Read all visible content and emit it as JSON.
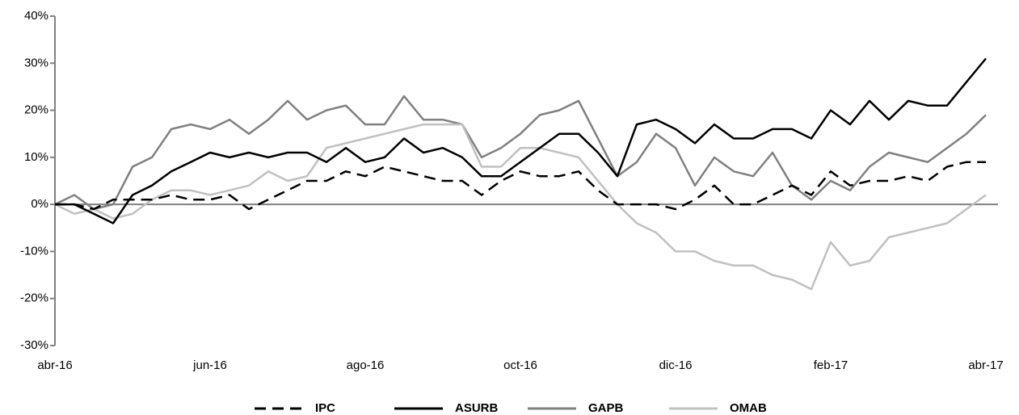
{
  "chart_data": {
    "type": "line",
    "categories": [
      "abr-16",
      null,
      null,
      null,
      null,
      null,
      null,
      null,
      "jun-16",
      null,
      null,
      null,
      null,
      null,
      null,
      null,
      "ago-16",
      null,
      null,
      null,
      null,
      null,
      null,
      null,
      "oct-16",
      null,
      null,
      null,
      null,
      null,
      null,
      null,
      "dic-16",
      null,
      null,
      null,
      null,
      null,
      null,
      null,
      "feb-17",
      null,
      null,
      null,
      null,
      null,
      null,
      null,
      "abr-17"
    ],
    "series": [
      {
        "name": "IPC",
        "color": "#000000",
        "dashed": true,
        "values": [
          0,
          0,
          -1,
          1,
          1,
          1,
          2,
          1,
          1,
          2,
          -1,
          1,
          3,
          5,
          5,
          7,
          6,
          8,
          7,
          6,
          5,
          5,
          2,
          5,
          7,
          6,
          6,
          7,
          3,
          0,
          0,
          0,
          -1,
          1,
          4,
          0,
          0,
          2,
          4,
          2,
          7,
          4,
          5,
          5,
          6,
          5,
          8,
          9,
          9
        ]
      },
      {
        "name": "ASURB",
        "color": "#000000",
        "values": [
          0,
          0,
          -2,
          -4,
          2,
          4,
          7,
          9,
          11,
          10,
          11,
          10,
          11,
          11,
          9,
          12,
          9,
          10,
          14,
          11,
          12,
          10,
          6,
          6,
          9,
          12,
          15,
          15,
          11,
          6,
          17,
          18,
          16,
          13,
          17,
          14,
          14,
          16,
          16,
          14,
          20,
          17,
          22,
          18,
          22,
          21,
          21,
          26,
          31
        ]
      },
      {
        "name": "GAPB",
        "color": "#808080",
        "values": [
          0,
          2,
          -1,
          0,
          8,
          10,
          16,
          17,
          16,
          18,
          15,
          18,
          22,
          18,
          20,
          21,
          17,
          17,
          23,
          18,
          18,
          17,
          10,
          12,
          15,
          19,
          20,
          22,
          14,
          6,
          9,
          15,
          12,
          4,
          10,
          7,
          6,
          11,
          4,
          1,
          5,
          3,
          8,
          11,
          10,
          9,
          12,
          15,
          19
        ]
      },
      {
        "name": "OMAB",
        "color": "#c0c0c0",
        "values": [
          0,
          -2,
          -1,
          -3,
          -2,
          1,
          3,
          3,
          2,
          3,
          4,
          7,
          5,
          6,
          12,
          13,
          14,
          15,
          16,
          17,
          17,
          17,
          8,
          8,
          12,
          12,
          11,
          10,
          5,
          0,
          -4,
          -6,
          -10,
          -10,
          -12,
          -13,
          -13,
          -15,
          -16,
          -18,
          -8,
          -13,
          -12,
          -7,
          -6,
          -5,
          -4,
          -1,
          2
        ]
      }
    ],
    "ylim": [
      -30,
      40
    ],
    "yticks": [
      {
        "value": -30,
        "label": "-30%"
      },
      {
        "value": -20,
        "label": "-20%"
      },
      {
        "value": -10,
        "label": "-10%"
      },
      {
        "value": 0,
        "label": "0%"
      },
      {
        "value": 10,
        "label": "10%"
      },
      {
        "value": 20,
        "label": "20%"
      },
      {
        "value": 30,
        "label": "30%"
      },
      {
        "value": 40,
        "label": "40%"
      }
    ],
    "legend": "bottom"
  }
}
